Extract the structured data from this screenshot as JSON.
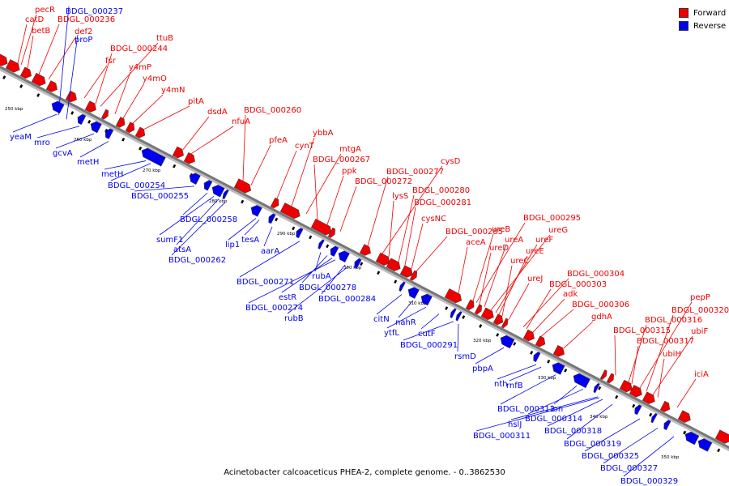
{
  "caption": "Acinetobacter calcoaceticus PHEA-2, complete genome. - 0..3862530",
  "legend": [
    {
      "label": "Forward",
      "color": "#ee0000"
    },
    {
      "label": "Reverse",
      "color": "#0000ee"
    }
  ],
  "colors": {
    "forward": "#ee0000",
    "reverse": "#0000ee",
    "backbone": "#888888"
  },
  "ticks": [
    "250 kbp",
    "260 kbp",
    "270 kbp",
    "280 kbp",
    "290 kbp",
    "300 kbp",
    "310 kbp",
    "320 kbp",
    "330 kbp",
    "340 kbp",
    "350 kbp"
  ],
  "forward_labels": [
    "pecR",
    "catD",
    "betB",
    "BDGL_000236",
    "def2",
    "fsr",
    "ttuB",
    "BDGL_000244",
    "y4mP",
    "y4mO",
    "y4mN",
    "pitA",
    "dsdA",
    "nfuA",
    "BDGL_000260",
    "pfeA",
    "cynT",
    "ybbA",
    "mtgA",
    "BDGL_000267",
    "ppk",
    "BDGL_000272",
    "BDGL_000277",
    "cysD",
    "lysS",
    "BDGL_000280",
    "BDGL_000281",
    "cysNC",
    "BDGL_000285",
    "aceA",
    "ureB",
    "BDGL_000295",
    "ureD",
    "ureA",
    "ureG",
    "ureF",
    "ureE",
    "ureC",
    "ureJ",
    "BDGL_000304",
    "BDGL_000303",
    "adk",
    "BDGL_000306",
    "gdhA",
    "pepP",
    "BDGL_000320",
    "BDGL_000316",
    "BDGL_000315",
    "ubiF",
    "BDGL_000317",
    "ubiH",
    "iciA"
  ],
  "reverse_labels": [
    "BDGL_000237",
    "proP",
    "yeaM",
    "mro",
    "gcvA",
    "metH",
    "metH",
    "BDGL_000254",
    "BDGL_000255",
    "BDGL_000258",
    "sumF1",
    "atsA",
    "BDGL_000262",
    "lip1",
    "tesA",
    "aarA",
    "BDGL_000271",
    "rubA",
    "BDGL_000278",
    "estR",
    "BDGL_000274",
    "BDGL_000284",
    "rubB",
    "citN",
    "nahR",
    "ytfL",
    "cutF",
    "BDGL_000291",
    "rsmD",
    "pbpA",
    "nth",
    "rnfB",
    "BDGL_000312",
    "lon",
    "BDGL_000314",
    "hslJ",
    "BDGL_000311",
    "BDGL_000318",
    "BDGL_000319",
    "BDGL_000325",
    "BDGL_000327",
    "BDGL_000329"
  ]
}
